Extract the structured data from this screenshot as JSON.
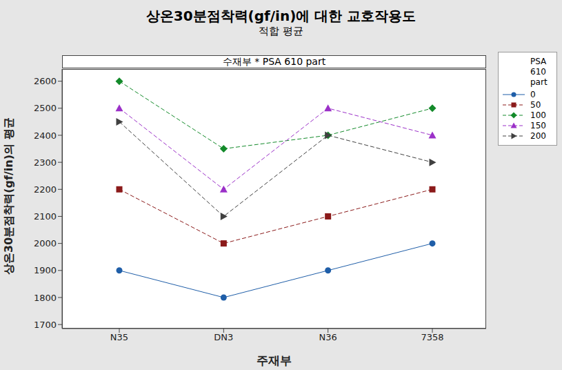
{
  "chart_data": {
    "type": "line",
    "title": "상온30분점착력(gf/in)에 대한 교호작용도",
    "subtitle": "적합 평균",
    "panel_title": "수재부 * PSA 610 part",
    "x_label": "주재부",
    "y_label": "상온30분점착력(gf/in)의 평균",
    "legend_title": "PSA 610 part",
    "legend": "right",
    "grid": false,
    "categories": [
      "N35",
      "DN3",
      "N36",
      "7358"
    ],
    "ylim": [
      1685,
      2645
    ],
    "yticks": [
      1700,
      1800,
      1900,
      2000,
      2100,
      2200,
      2300,
      2400,
      2500,
      2600
    ],
    "series": [
      {
        "name": "0",
        "color": "#1f5ea8",
        "marker": "circle",
        "line_style": "solid",
        "values": [
          1900,
          1800,
          1900,
          2000
        ]
      },
      {
        "name": "50",
        "color": "#8b1a1a",
        "marker": "square",
        "line_style": "dashed",
        "values": [
          2200,
          2000,
          2100,
          2200
        ]
      },
      {
        "name": "100",
        "color": "#138a2a",
        "marker": "diamond",
        "line_style": "dashed",
        "values": [
          2600,
          2350,
          2400,
          2500
        ]
      },
      {
        "name": "150",
        "color": "#9b30c8",
        "marker": "triangle",
        "line_style": "dashed",
        "values": [
          2500,
          2200,
          2500,
          2400
        ]
      },
      {
        "name": "200",
        "color": "#404040",
        "marker": "triangle-right",
        "line_style": "dashed",
        "values": [
          2450,
          2100,
          2400,
          2300
        ]
      }
    ]
  }
}
